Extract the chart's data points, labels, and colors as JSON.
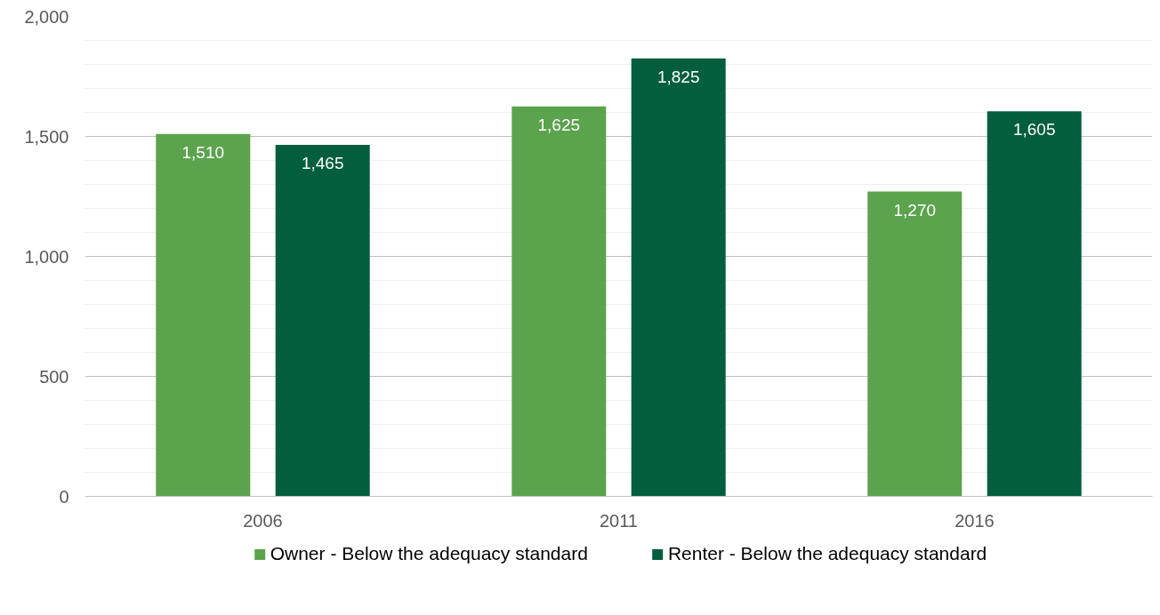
{
  "chart_data": {
    "type": "bar",
    "categories": [
      "2006",
      "2011",
      "2016"
    ],
    "series": [
      {
        "name": "Owner - Below the adequacy standard",
        "color": "#5ba34d",
        "values": [
          1510,
          1625,
          1270
        ],
        "value_labels": [
          "1,510",
          "1,625",
          "1,270"
        ]
      },
      {
        "name": "Renter - Below the adequacy standard",
        "color": "#025e3d",
        "values": [
          1465,
          1825,
          1605
        ],
        "value_labels": [
          "1,465",
          "1,825",
          "1,605"
        ]
      }
    ],
    "ylim": [
      0,
      2000
    ],
    "yticks": [
      {
        "value": 0,
        "label": "0"
      },
      {
        "value": 500,
        "label": "500"
      },
      {
        "value": 1000,
        "label": "1,000"
      },
      {
        "value": 1500,
        "label": "1,500"
      },
      {
        "value": 2000,
        "label": "2,000"
      }
    ],
    "grid": "y",
    "legend": "bottom"
  }
}
